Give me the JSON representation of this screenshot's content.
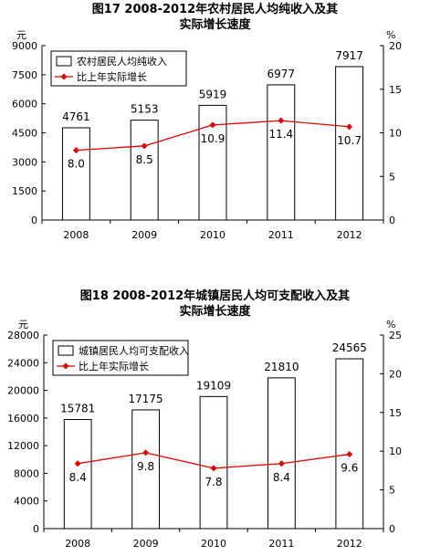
{
  "chart_data": [
    {
      "type": "bar",
      "title": "图17   2008-2012年农村居民人均纯收入及其",
      "subtitle": "实际增长速度",
      "categories": [
        "2008",
        "2009",
        "2010",
        "2011",
        "2012"
      ],
      "series": [
        {
          "name": "农村居民人均纯收入",
          "type": "bar",
          "axis": "left",
          "values": [
            4761,
            5153,
            5919,
            6977,
            7917
          ],
          "labels": [
            "4761",
            "5153",
            "5919",
            "6977",
            "7917"
          ]
        },
        {
          "name": "比上年实际增长",
          "type": "line",
          "axis": "right",
          "values": [
            8.0,
            8.5,
            10.9,
            11.4,
            10.7
          ],
          "labels": [
            "8.0",
            "8.5",
            "10.9",
            "11.4",
            "10.7"
          ]
        }
      ],
      "ylabel": "元",
      "y2label": "%",
      "ylim": [
        0,
        9000
      ],
      "y2lim": [
        0,
        20
      ],
      "yticks": [
        "0",
        "1500",
        "3000",
        "4500",
        "6000",
        "7500",
        "9000"
      ],
      "y2ticks": [
        "0",
        "5",
        "10",
        "15",
        "20"
      ],
      "legend": "top-left",
      "grid": false,
      "colors": {
        "bar_fill": "#ffffff",
        "bar_stroke": "#000000",
        "line": "#e30000"
      }
    },
    {
      "type": "bar",
      "title": "图18   2008-2012年城镇居民人均可支配收入及其",
      "subtitle": "实际增长速度",
      "categories": [
        "2008",
        "2009",
        "2010",
        "2011",
        "2012"
      ],
      "series": [
        {
          "name": "城镇居民人均可支配收入",
          "type": "bar",
          "axis": "left",
          "values": [
            15781,
            17175,
            19109,
            21810,
            24565
          ],
          "labels": [
            "15781",
            "17175",
            "19109",
            "21810",
            "24565"
          ]
        },
        {
          "name": "比上年实际增长",
          "type": "line",
          "axis": "right",
          "values": [
            8.4,
            9.8,
            7.8,
            8.4,
            9.6
          ],
          "labels": [
            "8.4",
            "9.8",
            "7.8",
            "8.4",
            "9.6"
          ]
        }
      ],
      "ylabel": "元",
      "y2label": "%",
      "ylim": [
        0,
        28000
      ],
      "y2lim": [
        0,
        25
      ],
      "yticks": [
        "0",
        "4000",
        "8000",
        "12000",
        "16000",
        "20000",
        "24000",
        "28000"
      ],
      "y2ticks": [
        "0",
        "5",
        "10",
        "15",
        "20",
        "25"
      ],
      "legend": "top-left",
      "grid": false,
      "colors": {
        "bar_fill": "#ffffff",
        "bar_stroke": "#000000",
        "line": "#e30000"
      }
    }
  ]
}
